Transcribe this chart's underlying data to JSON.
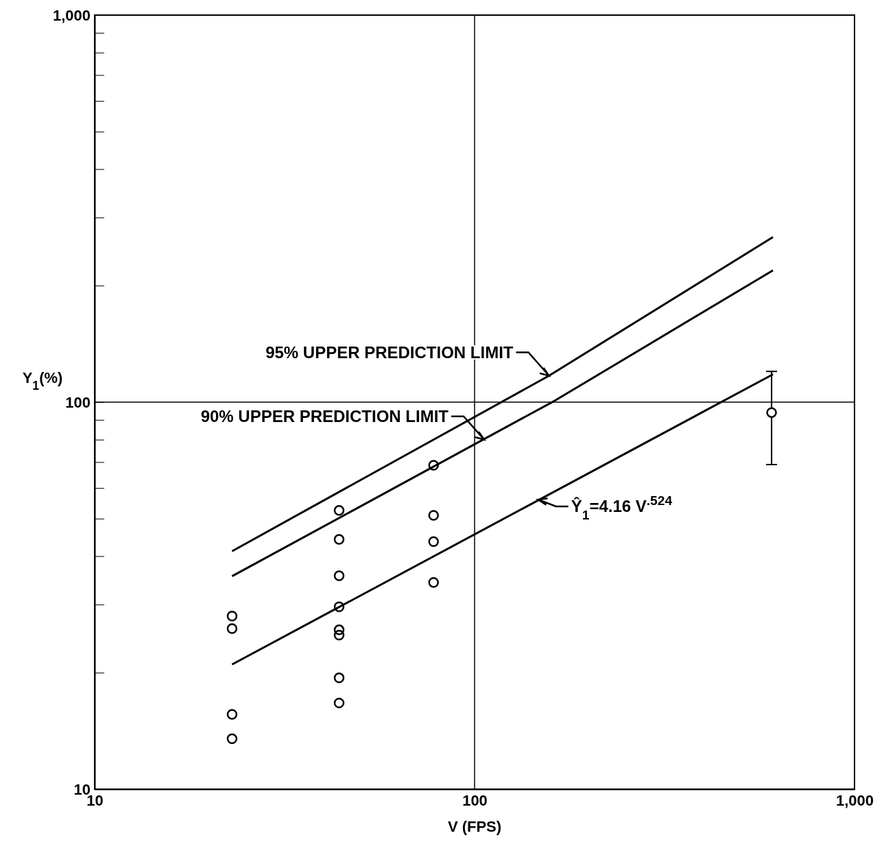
{
  "chart_data": {
    "type": "scatter",
    "xlabel": "V (FPS)",
    "ylabel": "Y$_{1}$(%)",
    "log": "xy",
    "xlim": [
      10,
      1000
    ],
    "ylim": [
      10,
      1000
    ],
    "xticks": [
      10,
      100,
      {
        "value": 1000,
        "label": "1,000"
      }
    ],
    "yticks": [
      10,
      {
        "value": 20,
        "label": null
      },
      {
        "value": 30,
        "label": null
      },
      {
        "value": 40,
        "label": null
      },
      {
        "value": 50,
        "label": null
      },
      {
        "value": 60,
        "label": null
      },
      {
        "value": 70,
        "label": null
      },
      {
        "value": 80,
        "label": null
      },
      {
        "value": 90,
        "label": null
      },
      100,
      {
        "value": 200,
        "label": null
      },
      {
        "value": 300,
        "label": null
      },
      {
        "value": 400,
        "label": null
      },
      {
        "value": 500,
        "label": null
      },
      {
        "value": 600,
        "label": null
      },
      {
        "value": 700,
        "label": null
      },
      {
        "value": 800,
        "label": null
      },
      {
        "value": 900,
        "label": null
      },
      {
        "value": 1000,
        "label": "1,000"
      }
    ],
    "grid": true,
    "marker": "circle",
    "line_style": "solid",
    "series": [
      {
        "color": "#000000",
        "x": [
          23,
          23,
          23,
          23,
          44,
          44,
          44,
          44,
          44,
          44,
          44,
          44,
          78,
          78,
          78,
          78,
          605
        ],
        "values": [
          28.0,
          26.0,
          15.6,
          13.5,
          52.5,
          44.2,
          35.6,
          29.6,
          25.8,
          25.0,
          19.4,
          16.7,
          68.7,
          51.0,
          43.6,
          34.2,
          94.0
        ],
        "errors": [
          null,
          null,
          null,
          null,
          null,
          null,
          null,
          null,
          null,
          null,
          null,
          null,
          null,
          null,
          null,
          null,
          [
            69,
            120
          ]
        ]
      },
      {
        "type": "line",
        "marker": "none",
        "color": "#000000",
        "x": [
          23,
          157,
          610
        ],
        "values": [
          41.2,
          117,
          267
        ]
      },
      {
        "type": "line",
        "marker": "none",
        "color": "#000000",
        "x": [
          23,
          163,
          610
        ],
        "values": [
          35.5,
          101,
          219
        ]
      },
      {
        "type": "line",
        "marker": "none",
        "color": "#000000",
        "x": [
          23,
          610
        ],
        "values": [
          21.0,
          118
        ]
      }
    ],
    "annotations": [
      {
        "text": "95% UPPER PREDICTION LIMIT",
        "x": 157,
        "y": 117
      },
      {
        "text": "90% UPPER PREDICTION LIMIT",
        "x": 106,
        "y": 80
      },
      {
        "text": "Ŷ$_{1}$=4.16 V$^{.524}$",
        "x": 147,
        "y": 56
      }
    ]
  }
}
